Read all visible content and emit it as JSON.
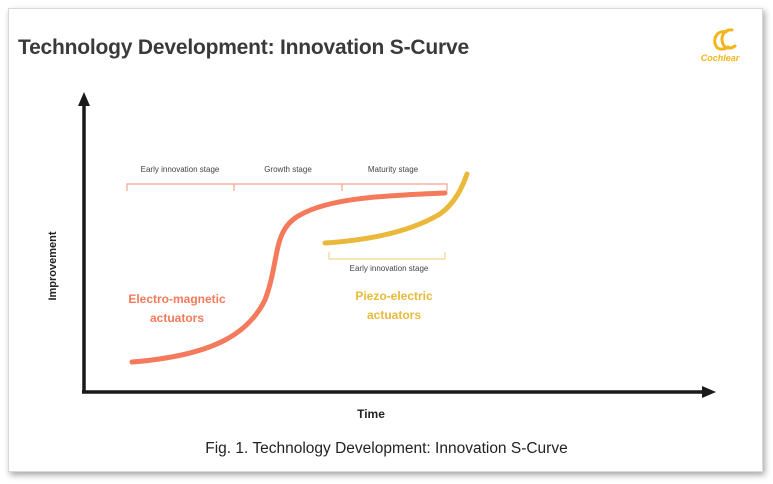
{
  "title": "Technology Development: Innovation S-Curve",
  "logo": {
    "text": "Cochlear"
  },
  "axes": {
    "y_label": "Improvement",
    "x_label": "Time"
  },
  "stages": {
    "early": "Early innovation stage",
    "growth": "Growth stage",
    "maturity": "Maturity stage",
    "piezo_early": "Early innovation stage"
  },
  "curves": {
    "electro": {
      "label_line1": "Electro-magnetic",
      "label_line2": "actuators",
      "color": "#f47a5b"
    },
    "piezo": {
      "label_line1": "Piezo-electric",
      "label_line2": "actuators",
      "color": "#eab93b"
    }
  },
  "bracket_color": "#f4a38c",
  "piezo_bracket_color": "#f1d58a",
  "caption": "Fig. 1. Technology Development: Innovation S-Curve"
}
